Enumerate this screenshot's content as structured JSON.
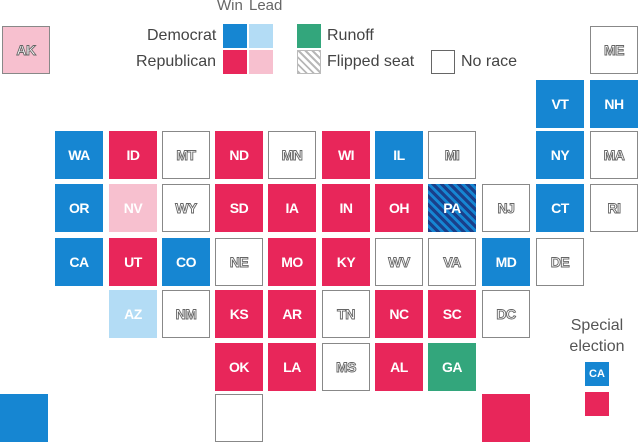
{
  "legend": {
    "win_label": "Win",
    "lead_label": "Lead",
    "democrat_label": "Democrat",
    "republican_label": "Republican",
    "runoff_label": "Runoff",
    "flipped_label": "Flipped seat",
    "norace_label": "No race",
    "colors": {
      "democrat_win": "#1686d2",
      "democrat_lead": "#b3dcf5",
      "republican_win": "#e8265a",
      "republican_lead": "#f7c0cf",
      "runoff": "#33a67c",
      "no_race": "#ffffff"
    }
  },
  "special": {
    "label_line1": "Special",
    "label_line2": "election",
    "states": [
      {
        "state": "CA",
        "status": "dem-win"
      },
      {
        "state": "",
        "status": "rep-win"
      }
    ]
  },
  "states": {
    "AK": {
      "label": "AK",
      "status": "rep-lead"
    },
    "ME": {
      "label": "ME",
      "status": "no-race"
    },
    "VT": {
      "label": "VT",
      "status": "dem-win"
    },
    "NH": {
      "label": "NH",
      "status": "dem-win"
    },
    "WA": {
      "label": "WA",
      "status": "dem-win"
    },
    "ID": {
      "label": "ID",
      "status": "rep-win"
    },
    "MT": {
      "label": "MT",
      "status": "no-race"
    },
    "ND": {
      "label": "ND",
      "status": "rep-win"
    },
    "MN": {
      "label": "MN",
      "status": "no-race"
    },
    "WI": {
      "label": "WI",
      "status": "rep-win"
    },
    "IL": {
      "label": "IL",
      "status": "dem-win"
    },
    "MI": {
      "label": "MI",
      "status": "no-race"
    },
    "NY": {
      "label": "NY",
      "status": "dem-win"
    },
    "MA": {
      "label": "MA",
      "status": "no-race"
    },
    "OR": {
      "label": "OR",
      "status": "dem-win"
    },
    "NV": {
      "label": "NV",
      "status": "rep-lead"
    },
    "WY": {
      "label": "WY",
      "status": "no-race"
    },
    "SD": {
      "label": "SD",
      "status": "rep-win"
    },
    "IA": {
      "label": "IA",
      "status": "rep-win"
    },
    "IN": {
      "label": "IN",
      "status": "rep-win"
    },
    "OH": {
      "label": "OH",
      "status": "rep-win"
    },
    "PA": {
      "label": "PA",
      "status": "flipped"
    },
    "NJ": {
      "label": "NJ",
      "status": "no-race"
    },
    "CT": {
      "label": "CT",
      "status": "dem-win"
    },
    "RI": {
      "label": "RI",
      "status": "no-race"
    },
    "CA": {
      "label": "CA",
      "status": "dem-win"
    },
    "UT": {
      "label": "UT",
      "status": "rep-win"
    },
    "CO": {
      "label": "CO",
      "status": "dem-win"
    },
    "NE": {
      "label": "NE",
      "status": "no-race"
    },
    "MO": {
      "label": "MO",
      "status": "rep-win"
    },
    "KY": {
      "label": "KY",
      "status": "rep-win"
    },
    "WV": {
      "label": "WV",
      "status": "no-race"
    },
    "VA": {
      "label": "VA",
      "status": "no-race"
    },
    "MD": {
      "label": "MD",
      "status": "dem-win"
    },
    "DE": {
      "label": "DE",
      "status": "no-race"
    },
    "AZ": {
      "label": "AZ",
      "status": "dem-lead"
    },
    "NM": {
      "label": "NM",
      "status": "no-race"
    },
    "KS": {
      "label": "KS",
      "status": "rep-win"
    },
    "AR": {
      "label": "AR",
      "status": "rep-win"
    },
    "TN": {
      "label": "TN",
      "status": "no-race"
    },
    "NC": {
      "label": "NC",
      "status": "rep-win"
    },
    "SC": {
      "label": "SC",
      "status": "rep-win"
    },
    "DC": {
      "label": "DC",
      "status": "no-race"
    },
    "OK": {
      "label": "OK",
      "status": "rep-win"
    },
    "LA": {
      "label": "LA",
      "status": "rep-win"
    },
    "MS": {
      "label": "MS",
      "status": "no-race"
    },
    "AL": {
      "label": "AL",
      "status": "rep-win"
    },
    "GA": {
      "label": "GA",
      "status": "runoff"
    }
  }
}
